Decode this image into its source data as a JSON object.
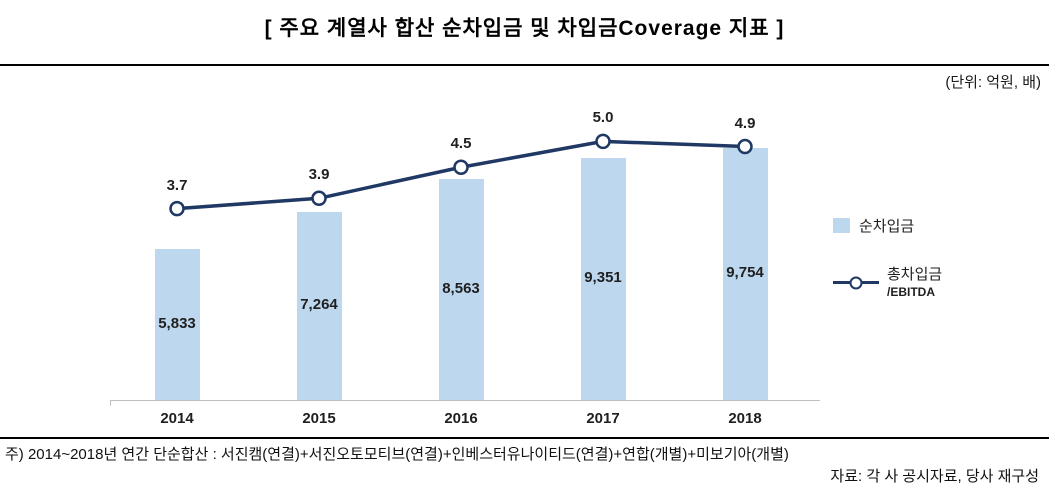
{
  "title": "[ 주요 계열사 합산 순차입금 및 차입금Coverage 지표 ]",
  "unit_label": "(단위: 억원, 배)",
  "legend": {
    "bar": "순차입금",
    "line_top": "총차입금",
    "line_bottom": "/EBITDA"
  },
  "footnote": "주) 2014~2018년 연간 단순합산 : 서진캠(연결)+서진오토모티브(연결)+인베스터유나이티드(연결)+연합(개별)+미보기아(개별)",
  "source": "자료: 각 사 공시자료, 당사 재구성",
  "colors": {
    "bar_fill": "#BDD7EE",
    "line": "#1F3864",
    "axis": "#BFBFBF",
    "text": "#1A1A1A"
  },
  "chart_data": {
    "type": "combo",
    "categories": [
      "2014",
      "2015",
      "2016",
      "2017",
      "2018"
    ],
    "series": [
      {
        "name": "순차입금",
        "type": "bar",
        "values": [
          5833,
          7264,
          8563,
          9351,
          9754
        ],
        "labels": [
          "5,833",
          "7,264",
          "8,563",
          "9,351",
          "9,754"
        ]
      },
      {
        "name": "총차입금/EBITDA",
        "type": "line",
        "values": [
          3.7,
          3.9,
          4.5,
          5.0,
          4.9
        ],
        "labels": [
          "3.7",
          "3.9",
          "4.5",
          "5.0",
          "4.9"
        ]
      }
    ],
    "bar_axis": {
      "min": 0,
      "max": 11600
    },
    "line_axis": {
      "min": 0,
      "max": 5.8
    },
    "legend_position": "right",
    "grid": false
  }
}
